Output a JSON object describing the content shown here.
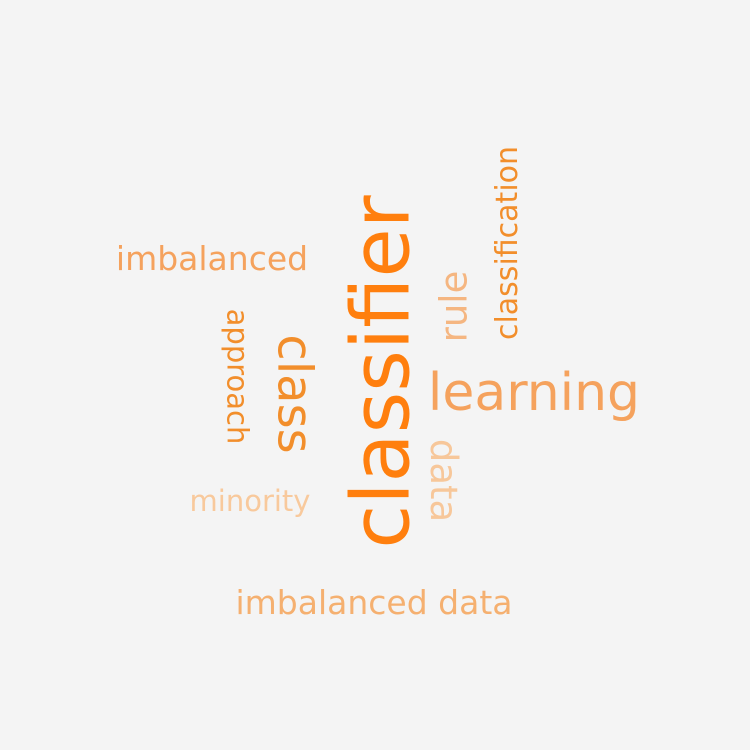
{
  "words": [
    {
      "text": "classifier",
      "color": "#ff7f0e",
      "rotation": "vertical"
    },
    {
      "text": "learning",
      "color": "#f5a25d",
      "rotation": "horizontal"
    },
    {
      "text": "class",
      "color": "#f28e2b",
      "rotation": "vertical-down"
    },
    {
      "text": "imbalanced data",
      "color": "#f5b070",
      "rotation": "horizontal"
    },
    {
      "text": "classification",
      "color": "#f28e2b",
      "rotation": "vertical"
    },
    {
      "text": "imbalanced",
      "color": "#f5a25d",
      "rotation": "horizontal"
    },
    {
      "text": "rule",
      "color": "#f5b681",
      "rotation": "vertical"
    },
    {
      "text": "approach",
      "color": "#f28e2b",
      "rotation": "vertical-down"
    },
    {
      "text": "data",
      "color": "#f7c79a",
      "rotation": "vertical-down"
    },
    {
      "text": "minority",
      "color": "#f8c99c",
      "rotation": "horizontal"
    }
  ]
}
